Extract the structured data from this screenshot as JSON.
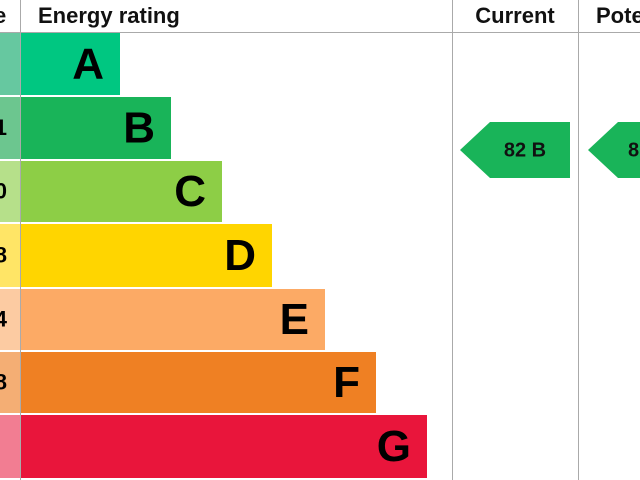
{
  "header": {
    "score": "e",
    "rating": "Energy rating",
    "current": "Current",
    "potential": "Pote"
  },
  "bands": [
    {
      "score": "",
      "letter": "A"
    },
    {
      "score": "1",
      "letter": "B"
    },
    {
      "score": "0",
      "letter": "C"
    },
    {
      "score": "8",
      "letter": "D"
    },
    {
      "score": "4",
      "letter": "E"
    },
    {
      "score": "8",
      "letter": "F"
    },
    {
      "score": "",
      "letter": "G"
    }
  ],
  "current": "82 B",
  "potential": "8"
}
